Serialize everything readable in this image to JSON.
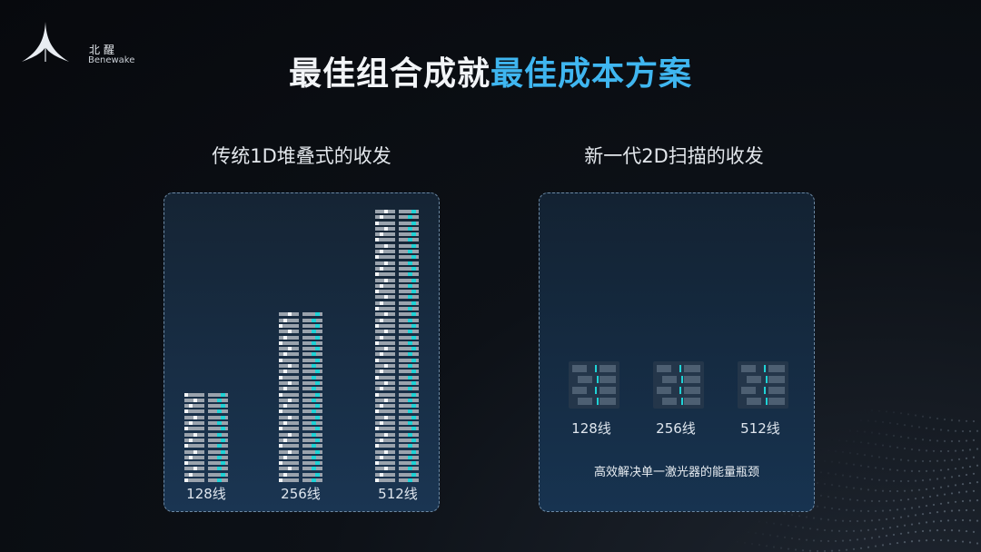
{
  "logo": {
    "cn": "北醒",
    "en": "Benewake"
  },
  "title": {
    "part1": "最佳组合成就",
    "part2": "最佳成本方案"
  },
  "left": {
    "subtitle": "传统1D堆叠式的收发",
    "stacks": [
      {
        "label": "128线",
        "rows": 16
      },
      {
        "label": "256线",
        "rows": 30
      },
      {
        "label": "512线",
        "rows": 48
      }
    ]
  },
  "right": {
    "subtitle": "新一代2D扫描的收发",
    "chips": [
      {
        "label": "128线"
      },
      {
        "label": "256线"
      },
      {
        "label": "512线"
      }
    ],
    "note": "高效解决单一激光器的能量瓶颈"
  },
  "colors": {
    "accent": "#3fb6f0",
    "bar": "#9aa3ad",
    "cyan": "#1fd3d6"
  }
}
